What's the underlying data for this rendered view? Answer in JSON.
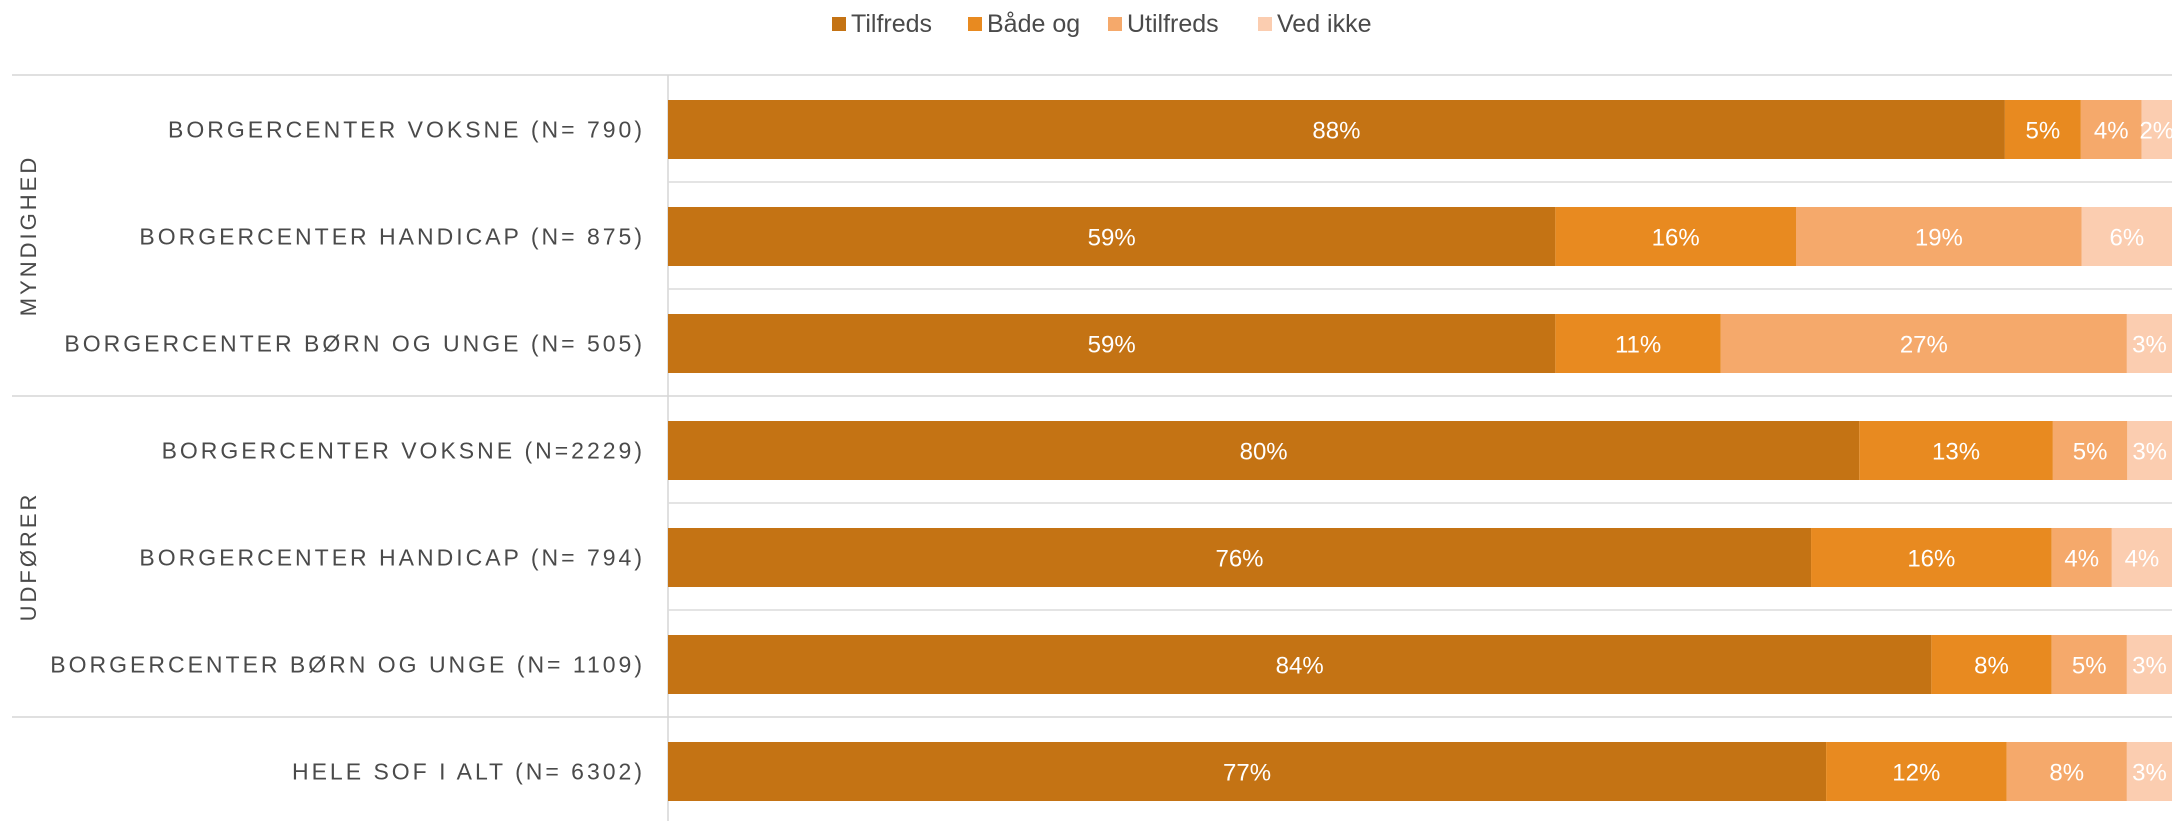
{
  "chart_data": {
    "type": "bar",
    "orientation": "horizontal",
    "stacked": true,
    "normalized": true,
    "legend_position": "top",
    "series": [
      {
        "name": "Tilfreds",
        "color": "#c47314",
        "values": [
          88,
          59,
          59,
          80,
          76,
          84,
          77
        ]
      },
      {
        "name": "Både og",
        "color": "#e88a20",
        "values": [
          5,
          16,
          11,
          13,
          16,
          8,
          12
        ]
      },
      {
        "name": "Utilfreds",
        "color": "#f5a96b",
        "values": [
          4,
          19,
          27,
          5,
          4,
          5,
          8
        ]
      },
      {
        "name": "Ved ikke",
        "color": "#fbcdb0",
        "values": [
          2,
          6,
          3,
          3,
          4,
          3,
          3
        ]
      }
    ],
    "categories": [
      "BORGERCENTER VOKSNE (N= 790)",
      "BORGERCENTER HANDICAP (N= 875)",
      "BORGERCENTER BØRN OG UNGE (N= 505)",
      "BORGERCENTER VOKSNE (N=2229)",
      "BORGERCENTER HANDICAP (N= 794)",
      "BORGERCENTER BØRN OG UNGE (N= 1109)",
      "HELE SOF I ALT (N= 6302)"
    ],
    "groups": [
      {
        "label": "MYNDIGHED",
        "rows": [
          0,
          1,
          2
        ]
      },
      {
        "label": "UDFØRER",
        "rows": [
          3,
          4,
          5
        ]
      },
      {
        "label": "",
        "rows": [
          6
        ]
      }
    ],
    "data_labels": [
      [
        "88%",
        "5%",
        "4%",
        "2%"
      ],
      [
        "59%",
        "16%",
        "19%",
        "6%"
      ],
      [
        "59%",
        "11%",
        "27%",
        "3%"
      ],
      [
        "80%",
        "13%",
        "5%",
        "3%"
      ],
      [
        "76%",
        "16%",
        "4%",
        "4%"
      ],
      [
        "84%",
        "8%",
        "5%",
        "3%"
      ],
      [
        "77%",
        "12%",
        "8%",
        "3%"
      ]
    ]
  }
}
